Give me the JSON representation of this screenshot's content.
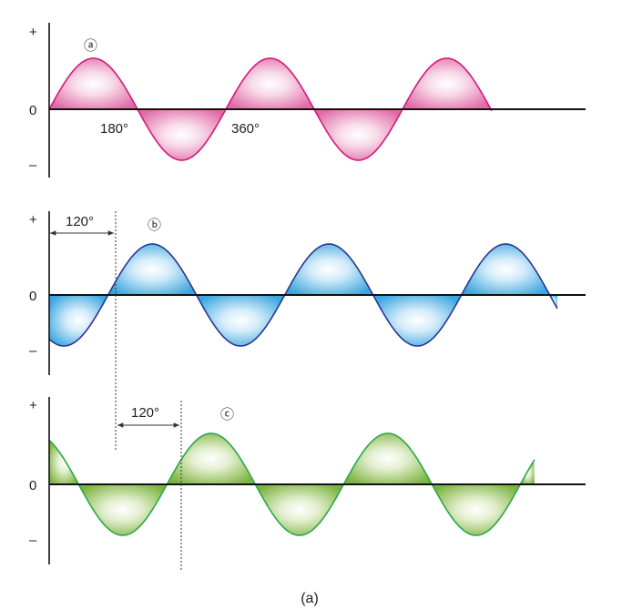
{
  "panels": [
    {
      "id": "a",
      "marker": "ⓐ",
      "axis_labels": {
        "plus": "+",
        "zero": "0",
        "minus": "–"
      },
      "angle_labels": [
        "180°",
        "360°"
      ],
      "phase_shift_deg": 0,
      "colors": {
        "stroke": "#d4187a",
        "fill": "#e06aa6"
      }
    },
    {
      "id": "b",
      "marker": "ⓑ",
      "axis_labels": {
        "plus": "+",
        "zero": "0",
        "minus": "–"
      },
      "shift_label": "120°",
      "phase_shift_deg": 120,
      "colors": {
        "stroke": "#2a3590",
        "fill": "#3aa6e0"
      }
    },
    {
      "id": "c",
      "marker": "ⓒ",
      "axis_labels": {
        "plus": "+",
        "zero": "0",
        "minus": "–"
      },
      "shift_label": "120°",
      "phase_shift_deg": 240,
      "colors": {
        "stroke": "#2aa84a",
        "fill": "#7db340"
      }
    }
  ],
  "caption": "(a)"
}
